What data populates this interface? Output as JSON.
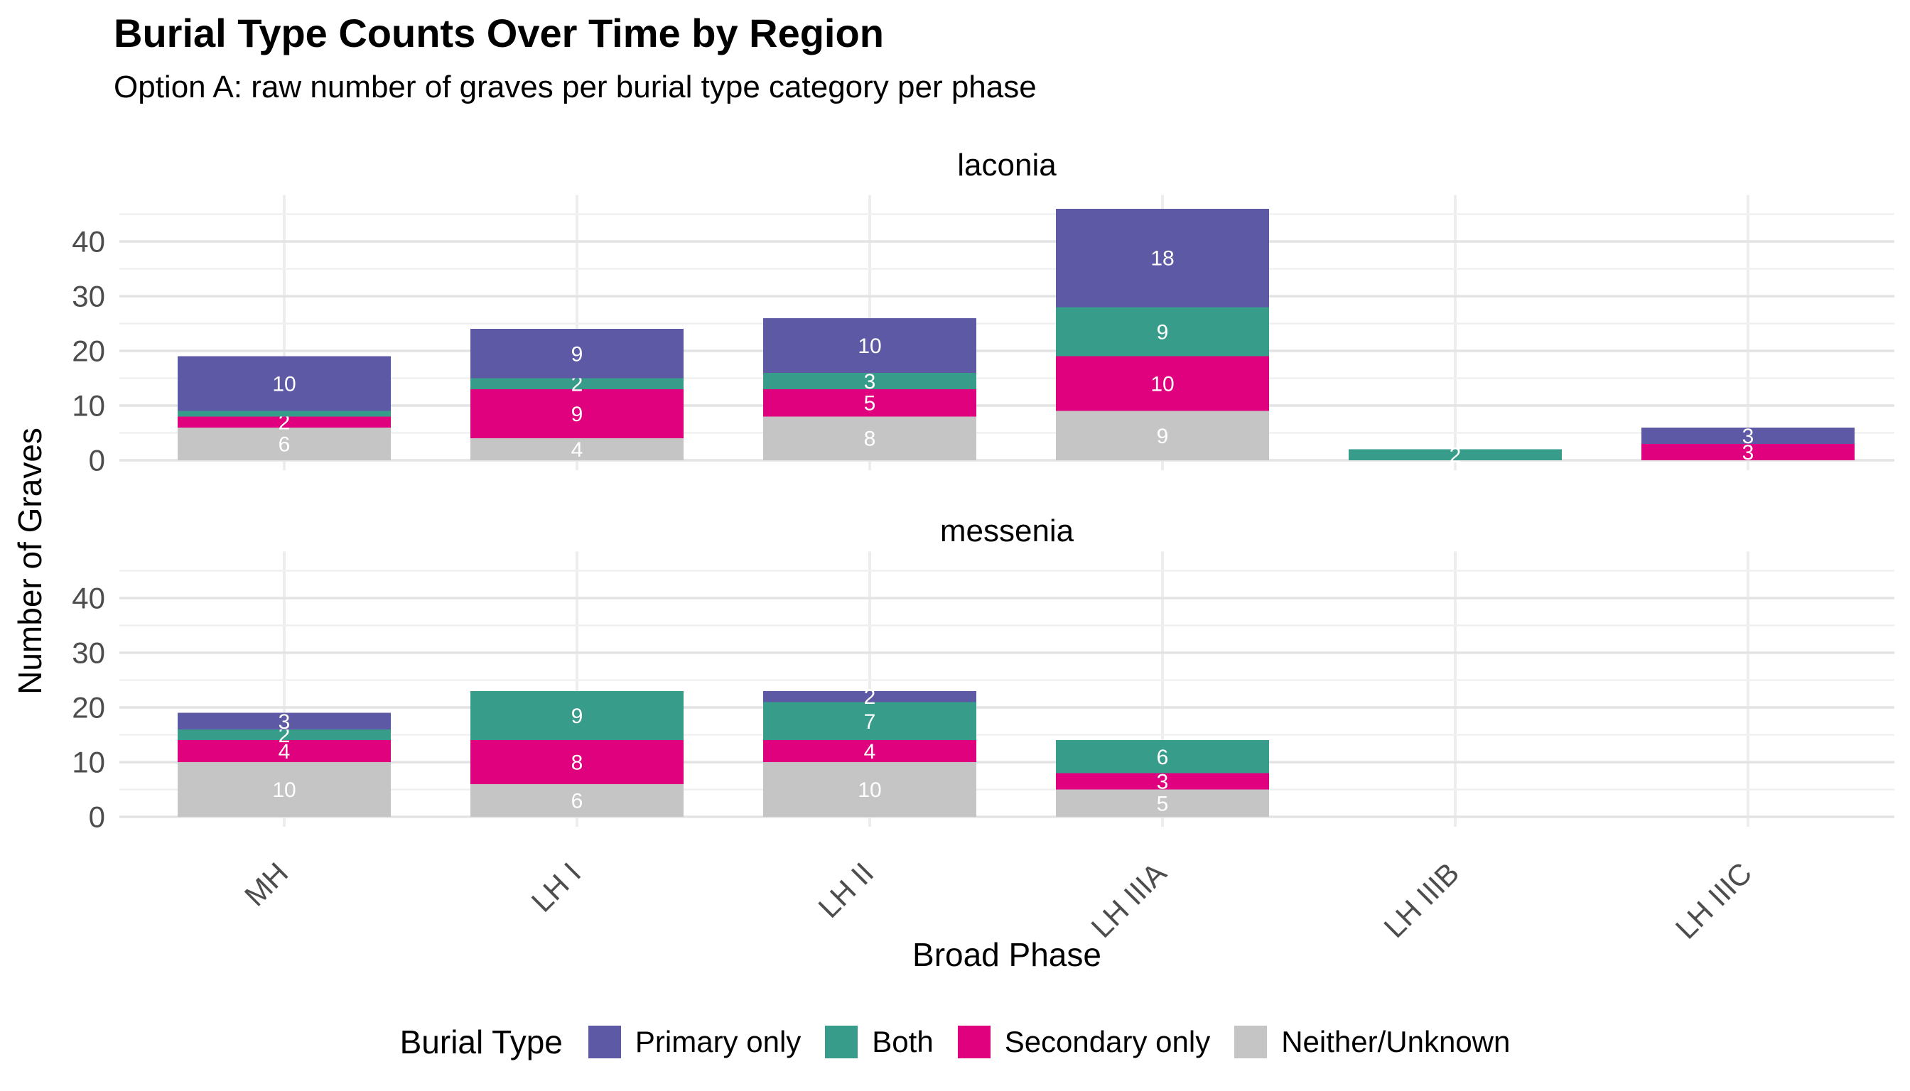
{
  "header": {
    "title": "Burial Type Counts Over Time by Region",
    "subtitle": "Option A: raw number of graves per burial type category per phase"
  },
  "chart_data": {
    "type": "bar",
    "stacked": true,
    "title": "Burial Type Counts Over Time by Region",
    "subtitle": "Option A: raw number of graves per burial type category per phase",
    "xlabel": "Broad Phase",
    "ylabel": "Number of Graves",
    "categories": [
      "MH",
      "LH I",
      "LH II",
      "LH IIIA",
      "LH IIIB",
      "LH IIIC"
    ],
    "yticks": [
      0,
      10,
      20,
      30,
      40
    ],
    "ylim": [
      0,
      48
    ],
    "grid": true,
    "stack_order_bottom_to_top": [
      "Neither/Unknown",
      "Secondary only",
      "Both",
      "Primary only"
    ],
    "facets": [
      {
        "label": "laconia",
        "series": [
          {
            "name": "Primary only",
            "values": [
              10,
              9,
              10,
              18,
              0,
              3
            ]
          },
          {
            "name": "Both",
            "values": [
              1,
              2,
              3,
              9,
              2,
              0
            ]
          },
          {
            "name": "Secondary only",
            "values": [
              2,
              9,
              5,
              10,
              0,
              3
            ]
          },
          {
            "name": "Neither/Unknown",
            "values": [
              6,
              4,
              8,
              9,
              0,
              0
            ]
          }
        ],
        "totals": [
          19,
          24,
          26,
          46,
          2,
          6
        ]
      },
      {
        "label": "messenia",
        "series": [
          {
            "name": "Primary only",
            "values": [
              3,
              0,
              2,
              0,
              0,
              0
            ]
          },
          {
            "name": "Both",
            "values": [
              2,
              9,
              7,
              6,
              0,
              0
            ]
          },
          {
            "name": "Secondary only",
            "values": [
              4,
              8,
              4,
              3,
              0,
              0
            ]
          },
          {
            "name": "Neither/Unknown",
            "values": [
              10,
              6,
              10,
              5,
              0,
              0
            ]
          }
        ],
        "totals": [
          19,
          23,
          23,
          14,
          0,
          0
        ]
      }
    ],
    "legend": {
      "title": "Burial Type",
      "position": "bottom",
      "entries": [
        {
          "label": "Primary only",
          "color": "#5D59A5"
        },
        {
          "label": "Both",
          "color": "#389C8B"
        },
        {
          "label": "Secondary only",
          "color": "#E0017E"
        },
        {
          "label": "Neither/Unknown",
          "color": "#C5C5C5"
        }
      ]
    },
    "bar_label_color": "#FFFFFF",
    "min_label_value": 2,
    "colors": {
      "grid_major": "#E4E4E4",
      "grid_minor": "#F0F0F0",
      "axis_text": "#4D4D4D",
      "text": "#000000",
      "background": "#FFFFFF"
    }
  }
}
